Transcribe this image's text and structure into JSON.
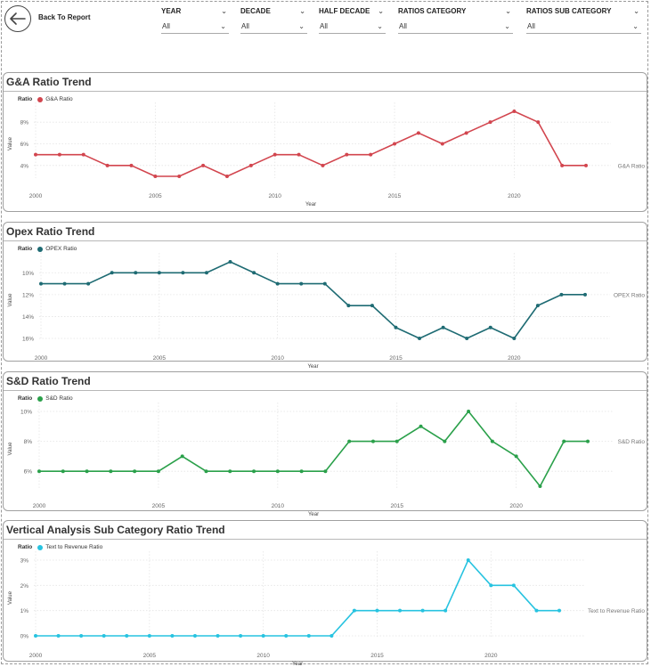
{
  "header": {
    "back_label": "Back To Report",
    "slicers": [
      {
        "title": "YEAR",
        "value": "All"
      },
      {
        "title": "DECADE",
        "value": "All"
      },
      {
        "title": "HALF DECADE",
        "value": "All"
      },
      {
        "title": "RATIOS CATEGORY",
        "value": "All"
      },
      {
        "title": "RATIOS SUB CATEGORY",
        "value": "All"
      }
    ]
  },
  "charts": [
    {
      "title": "G&A Ratio Trend",
      "legend_label": "Ratio",
      "series_name": "G&A Ratio",
      "color": "#d2454e",
      "ylabel": "Value",
      "xlabel": "Year",
      "series_label": "G&A Ratio",
      "y_ticks": [
        "4%",
        "6%",
        "8%"
      ],
      "x_ticks": [
        "2000",
        "2005",
        "2010",
        "2015",
        "2020"
      ]
    },
    {
      "title": "Opex Ratio Trend",
      "legend_label": "Ratio",
      "series_name": "OPEX Ratio",
      "color": "#1e6b73",
      "ylabel": "Value",
      "xlabel": "Year",
      "series_label": "OPEX Ratio",
      "y_ticks": [
        "10%",
        "12%",
        "14%",
        "16%"
      ],
      "x_ticks": [
        "2000",
        "2005",
        "2010",
        "2015",
        "2020"
      ]
    },
    {
      "title": "S&D Ratio Trend",
      "legend_label": "Ratio",
      "series_name": "S&D Ratio",
      "color": "#2aa04a",
      "ylabel": "Value",
      "xlabel": "Year",
      "series_label": "S&D Ratio",
      "y_ticks": [
        "6%",
        "8%",
        "10%"
      ],
      "x_ticks": [
        "2000",
        "2005",
        "2010",
        "2015",
        "2020"
      ]
    },
    {
      "title": "Vertical Analysis Sub Category Ratio Trend",
      "legend_label": "Ratio",
      "series_name": "Text to Revenue Ratio",
      "color": "#27c3e0",
      "ylabel": "Value",
      "xlabel": "Year",
      "series_label": "Text to Revenue Ratio",
      "y_ticks": [
        "0%",
        "1%",
        "2%",
        "3%"
      ],
      "x_ticks": [
        "2000",
        "2005",
        "2010",
        "2015",
        "2020"
      ]
    }
  ],
  "chart_data": [
    {
      "type": "line",
      "title": "G&A Ratio Trend",
      "xlabel": "Year",
      "ylabel": "Value",
      "x": [
        2000,
        2001,
        2002,
        2003,
        2004,
        2005,
        2006,
        2007,
        2008,
        2009,
        2010,
        2011,
        2012,
        2013,
        2014,
        2015,
        2016,
        2017,
        2018,
        2019,
        2020,
        2021,
        2022,
        2023
      ],
      "series": [
        {
          "name": "G&A Ratio",
          "values": [
            5,
            5,
            5,
            4,
            4,
            3,
            3,
            4,
            3,
            4,
            5,
            5,
            4,
            5,
            5,
            6,
            7,
            6,
            7,
            8,
            9,
            8,
            4,
            4
          ]
        }
      ],
      "ylim": [
        3,
        9
      ],
      "y_reversed": false,
      "grid": true,
      "legend": "top-left"
    },
    {
      "type": "line",
      "title": "Opex Ratio Trend",
      "xlabel": "Year",
      "ylabel": "Value",
      "x": [
        2000,
        2001,
        2002,
        2003,
        2004,
        2005,
        2006,
        2007,
        2008,
        2009,
        2010,
        2011,
        2012,
        2013,
        2014,
        2015,
        2016,
        2017,
        2018,
        2019,
        2020,
        2021,
        2022,
        2023
      ],
      "series": [
        {
          "name": "OPEX Ratio",
          "values": [
            11,
            11,
            11,
            10,
            10,
            10,
            10,
            10,
            9,
            10,
            11,
            11,
            11,
            13,
            13,
            15,
            16,
            15,
            16,
            15,
            16,
            13,
            12,
            12
          ]
        }
      ],
      "ylim": [
        9,
        16
      ],
      "y_reversed": true,
      "grid": true,
      "legend": "top-left"
    },
    {
      "type": "line",
      "title": "S&D Ratio Trend",
      "xlabel": "Year",
      "ylabel": "Value",
      "x": [
        2000,
        2001,
        2002,
        2003,
        2004,
        2005,
        2006,
        2007,
        2008,
        2009,
        2010,
        2011,
        2012,
        2013,
        2014,
        2015,
        2016,
        2017,
        2018,
        2019,
        2020,
        2021,
        2022,
        2023
      ],
      "series": [
        {
          "name": "S&D Ratio",
          "values": [
            6,
            6,
            6,
            6,
            6,
            6,
            7,
            6,
            6,
            6,
            6,
            6,
            6,
            8,
            8,
            8,
            9,
            8,
            10,
            8,
            7,
            5,
            8,
            8
          ]
        }
      ],
      "ylim": [
        5,
        10
      ],
      "y_reversed": false,
      "grid": true,
      "legend": "top-left"
    },
    {
      "type": "line",
      "title": "Vertical Analysis Sub Category Ratio Trend",
      "xlabel": "Year",
      "ylabel": "Value",
      "x": [
        2000,
        2001,
        2002,
        2003,
        2004,
        2005,
        2006,
        2007,
        2008,
        2009,
        2010,
        2011,
        2012,
        2013,
        2014,
        2015,
        2016,
        2017,
        2018,
        2019,
        2020,
        2021,
        2022,
        2023
      ],
      "series": [
        {
          "name": "Text to Revenue Ratio",
          "values": [
            0,
            0,
            0,
            0,
            0,
            0,
            0,
            0,
            0,
            0,
            0,
            0,
            0,
            0,
            1,
            1,
            1,
            1,
            1,
            3,
            2,
            2,
            1,
            1
          ]
        }
      ],
      "ylim": [
        0,
        3
      ],
      "y_reversed": false,
      "grid": true,
      "legend": "top-left"
    }
  ]
}
